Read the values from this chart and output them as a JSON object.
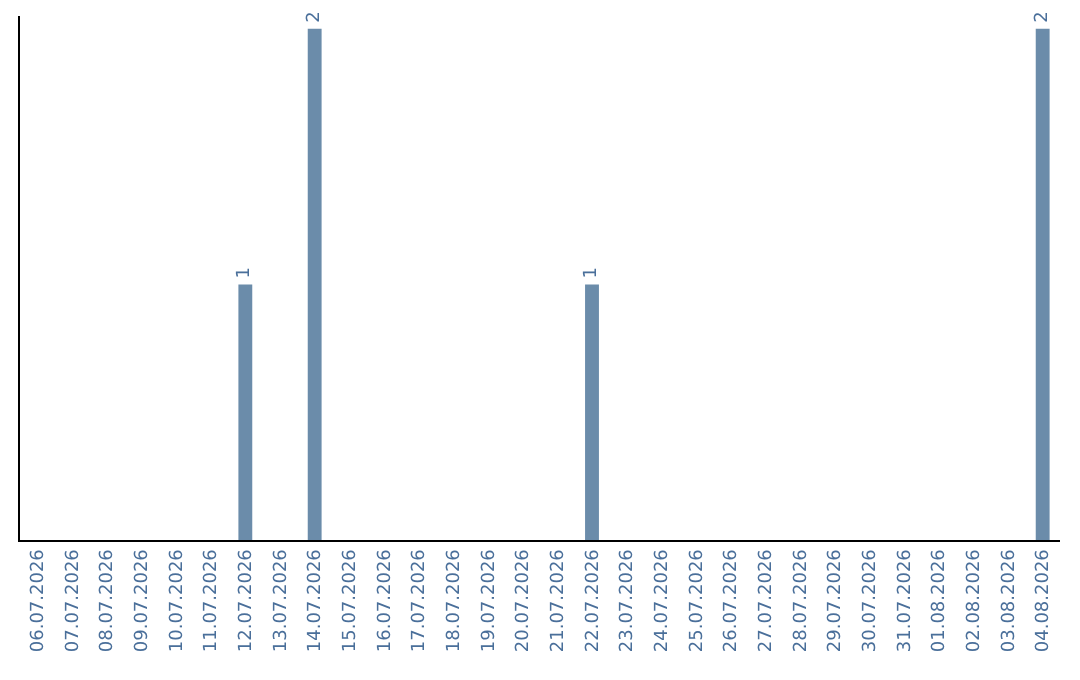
{
  "chart_data": {
    "type": "bar",
    "categories": [
      "06.07.2026",
      "07.07.2026",
      "08.07.2026",
      "09.07.2026",
      "10.07.2026",
      "11.07.2026",
      "12.07.2026",
      "13.07.2026",
      "14.07.2026",
      "15.07.2026",
      "16.07.2026",
      "17.07.2026",
      "18.07.2026",
      "19.07.2026",
      "20.07.2026",
      "21.07.2026",
      "22.07.2026",
      "23.07.2026",
      "24.07.2026",
      "25.07.2026",
      "26.07.2026",
      "27.07.2026",
      "28.07.2026",
      "29.07.2026",
      "30.07.2026",
      "31.07.2026",
      "01.08.2026",
      "02.08.2026",
      "03.08.2026",
      "04.08.2026"
    ],
    "values": [
      0,
      0,
      0,
      0,
      0,
      0,
      1,
      0,
      2,
      0,
      0,
      0,
      0,
      0,
      0,
      0,
      1,
      0,
      0,
      0,
      0,
      0,
      0,
      0,
      0,
      0,
      0,
      0,
      0,
      2
    ],
    "value_labels": [
      null,
      null,
      null,
      null,
      null,
      null,
      "1",
      null,
      "2",
      null,
      null,
      null,
      null,
      null,
      null,
      null,
      "1",
      null,
      null,
      null,
      null,
      null,
      null,
      null,
      null,
      null,
      null,
      null,
      null,
      "2"
    ],
    "color": "#6b8caa",
    "ylim": [
      0,
      2.05
    ],
    "tick_labels": "x",
    "legend": false
  }
}
